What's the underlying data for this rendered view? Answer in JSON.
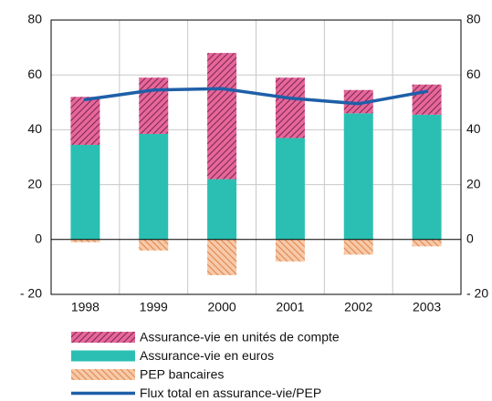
{
  "chart_data": {
    "type": "bar",
    "categories": [
      "1998",
      "1999",
      "2000",
      "2001",
      "2002",
      "2003"
    ],
    "series": [
      {
        "name": "Assurance-vie en unités de compte",
        "type": "bar",
        "color": "#e8669a",
        "hatch": "/",
        "values": [
          17.5,
          20.5,
          46,
          22,
          8.5,
          11
        ]
      },
      {
        "name": "Assurance-vie en euros",
        "type": "bar",
        "color": "#2bbfb3",
        "values": [
          34.5,
          38.5,
          22,
          37,
          46,
          45.5
        ]
      },
      {
        "name": "PEP bancaires",
        "type": "bar",
        "color": "#f7c9a8",
        "hatch": "\\",
        "values": [
          -1,
          -4,
          -13,
          -8,
          -5.5,
          -2.5
        ]
      },
      {
        "name": "Flux total en assurance-vie/PEP",
        "type": "line",
        "color": "#1f5fa8",
        "values": [
          51,
          54.5,
          55,
          51.5,
          49.5,
          54
        ]
      }
    ],
    "ylim": [
      -20,
      80
    ],
    "yticks": [
      {
        "value": -20,
        "label": "- 20"
      },
      0,
      20,
      40,
      60,
      80
    ],
    "y2lim": [
      -20,
      80
    ],
    "y2ticks": [
      {
        "value": -20,
        "label": "- 20"
      },
      0,
      20,
      40,
      60,
      80
    ],
    "grid": true
  }
}
